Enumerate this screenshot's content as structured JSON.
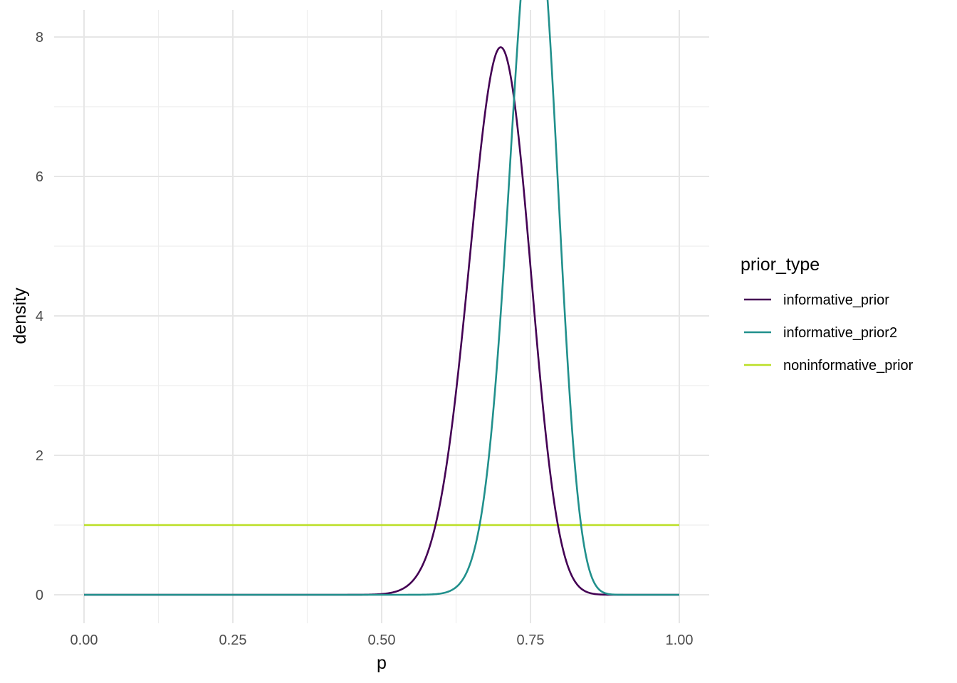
{
  "chart_data": {
    "type": "line",
    "xlabel": "p",
    "ylabel": "density",
    "xlim": [
      0,
      1
    ],
    "ylim": [
      0,
      8
    ],
    "x_ticks": [
      0,
      0.25,
      0.5,
      0.75,
      1
    ],
    "x_tick_labels": [
      "0.00",
      "0.25",
      "0.50",
      "0.75",
      "1.00"
    ],
    "y_ticks": [
      0,
      2,
      4,
      6,
      8
    ],
    "y_tick_labels": [
      "0",
      "2",
      "4",
      "6",
      "8"
    ],
    "grid": true,
    "legend": {
      "title": "prior_type",
      "placement": "right"
    },
    "series": [
      {
        "name": "informative_prior",
        "color": "#440154",
        "curve": "beta",
        "alpha": 57,
        "beta": 25
      },
      {
        "name": "informative_prior2",
        "color": "#21908C",
        "curve": "beta",
        "alpha": 88,
        "beta": 29
      },
      {
        "name": "noninformative_prior",
        "color": "#BBDF27",
        "curve": "constant",
        "value": 1
      }
    ]
  }
}
